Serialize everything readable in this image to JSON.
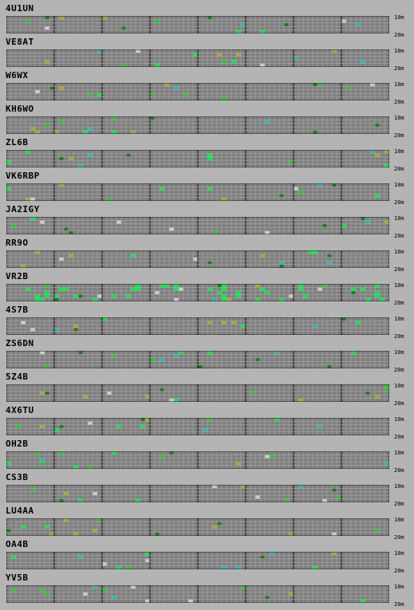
{
  "band_labels": {
    "top": "10m",
    "bottom": "20m"
  },
  "colors": {
    "background": "#b4b4b4",
    "cell_empty": "#7f7f7f",
    "grid_line": "#a8a8a8",
    "hour_separator": "#202020",
    "signal_levels": [
      "#00ee44",
      "#22cc22",
      "#aaaa22",
      "#22bbbb",
      "#cccccc",
      "#227722"
    ]
  },
  "beacons": [
    {
      "call": "4U1UN"
    },
    {
      "call": "VE8AT"
    },
    {
      "call": "W6WX"
    },
    {
      "call": "KH6WO"
    },
    {
      "call": "ZL6B"
    },
    {
      "call": "VK6RBP"
    },
    {
      "call": "JA2IGY"
    },
    {
      "call": "RR9O"
    },
    {
      "call": "VR2B"
    },
    {
      "call": "4S7B"
    },
    {
      "call": "ZS6DN"
    },
    {
      "call": "5Z4B"
    },
    {
      "call": "4X6TU"
    },
    {
      "call": "OH2B"
    },
    {
      "call": "CS3B"
    },
    {
      "call": "LU4AA"
    },
    {
      "call": "OA4B"
    },
    {
      "call": "YV5B"
    }
  ]
}
